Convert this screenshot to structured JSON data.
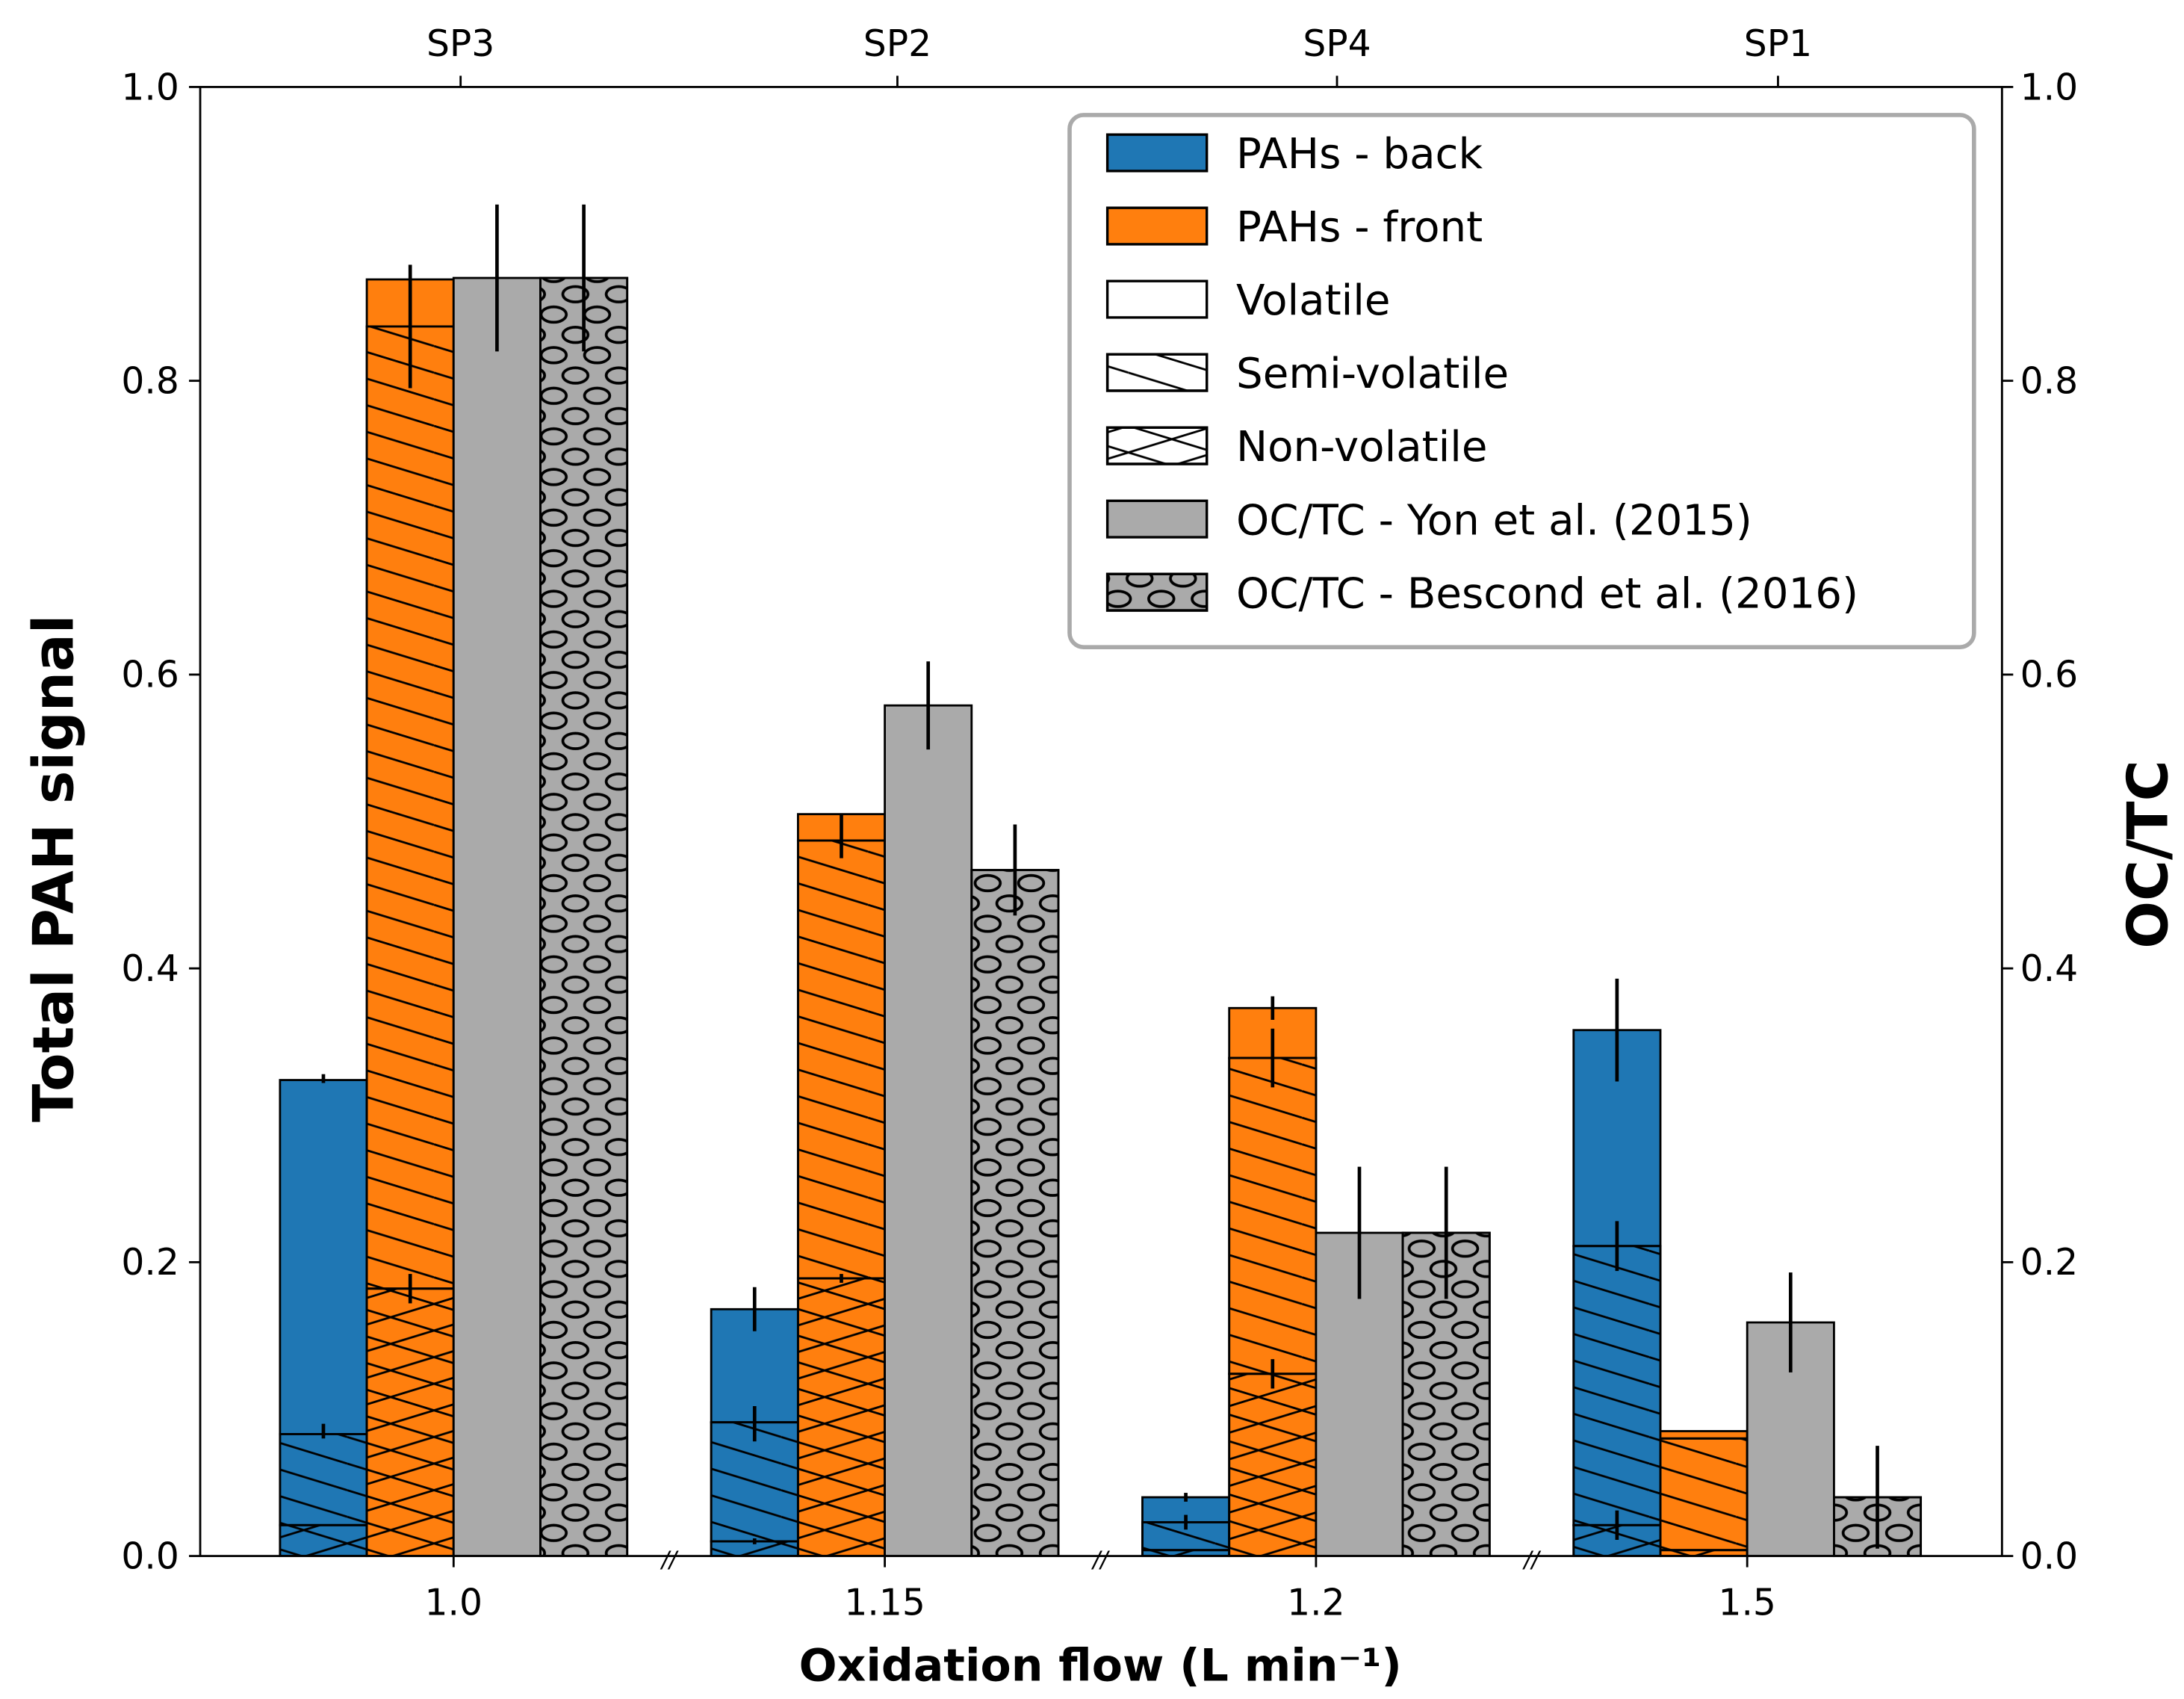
{
  "chart_data": {
    "type": "bar",
    "title": "",
    "xlabel": "Oxidation flow (L min⁻¹)",
    "ylabel": "Total PAH signal",
    "ylabel_right": "OC/TC",
    "ylim": [
      0,
      1.0
    ],
    "yticks": [
      "0.0",
      "0.2",
      "0.4",
      "0.6",
      "0.8",
      "1.0"
    ],
    "categories": [
      "1.0",
      "1.15",
      "1.2",
      "1.5"
    ],
    "top_categories": [
      "SP3",
      "SP2",
      "SP4",
      "SP1"
    ],
    "axis_break_marks": "//",
    "legend_position": "top-right",
    "legend": [
      {
        "label": "PAHs - back",
        "kind": "solid",
        "color": "#1f77b4"
      },
      {
        "label": "PAHs - front",
        "kind": "solid",
        "color": "#ff7f0e"
      },
      {
        "label": "Volatile",
        "kind": "plain",
        "color": "#ffffff"
      },
      {
        "label": "Semi-volatile",
        "kind": "semi",
        "color": "#ffffff"
      },
      {
        "label": "Non-volatile",
        "kind": "non",
        "color": "#ffffff"
      },
      {
        "label": "OC/TC - Yon et al. (2015)",
        "kind": "solid",
        "color": "#aaaaaa"
      },
      {
        "label": "OC/TC - Bescond et al. (2016)",
        "kind": "circles",
        "color": "#aaaaaa"
      }
    ],
    "series": [
      {
        "name": "PAHs - back",
        "color": "#1f77b4",
        "stacked": true,
        "non_volatile": [
          0.021,
          0.01,
          0.004,
          0.021
        ],
        "semi_volatile_top": [
          0.083,
          0.091,
          0.023,
          0.211
        ],
        "total": [
          0.324,
          0.168,
          0.04,
          0.358
        ],
        "errors": [
          [
            [
              0.325,
              0.003
            ],
            [
              0.085,
              0.005
            ]
          ],
          [
            [
              0.168,
              0.015
            ],
            [
              0.09,
              0.012
            ],
            [
              0.01,
              0.002
            ]
          ],
          [
            [
              0.04,
              0.003
            ],
            [
              0.023,
              0.005
            ]
          ],
          [
            [
              0.358,
              0.035
            ],
            [
              0.211,
              0.017
            ],
            [
              0.021,
              0.01
            ]
          ]
        ]
      },
      {
        "name": "PAHs - front",
        "color": "#ff7f0e",
        "stacked": true,
        "non_volatile": [
          0.182,
          0.189,
          0.124,
          0.004
        ],
        "semi_volatile_top": [
          0.837,
          0.487,
          0.339,
          0.08
        ],
        "total": [
          0.869,
          0.505,
          0.373,
          0.085
        ],
        "errors": [
          [
            [
              0.837,
              0.042
            ],
            [
              0.182,
              0.01
            ]
          ],
          [
            [
              0.49,
              0.015
            ],
            [
              0.189,
              0.003
            ]
          ],
          [
            [
              0.373,
              0.008
            ],
            [
              0.339,
              0.02
            ],
            [
              0.124,
              0.01
            ]
          ],
          []
        ]
      },
      {
        "name": "OC/TC - Yon et al. (2015)",
        "color": "#aaaaaa",
        "values": [
          0.87,
          0.579,
          0.22,
          0.159
        ],
        "errors": [
          0.05,
          0.03,
          0.045,
          0.034
        ]
      },
      {
        "name": "OC/TC - Bescond et al. (2016)",
        "color": "#aaaaaa",
        "hatch": "circles",
        "values": [
          0.87,
          0.467,
          0.22,
          0.04
        ],
        "errors": [
          0.05,
          0.031,
          0.045,
          0.035
        ]
      }
    ]
  }
}
